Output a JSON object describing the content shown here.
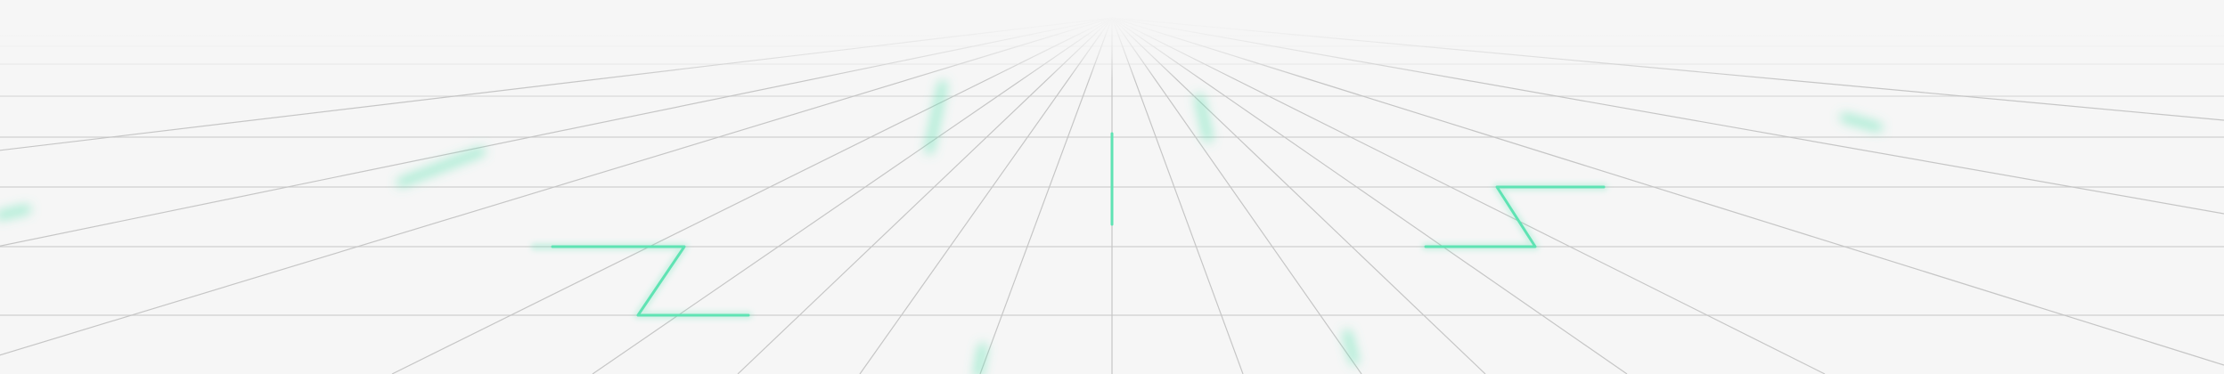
{
  "colors": {
    "background": "#f6f6f6",
    "grid_line": "#c9c9c9",
    "accent": "#5fe3b3"
  }
}
